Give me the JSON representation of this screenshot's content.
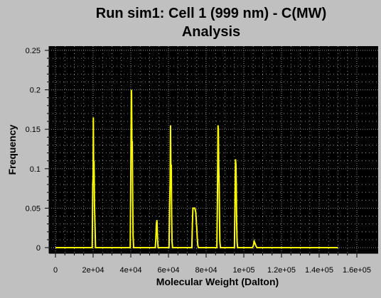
{
  "chart_data": {
    "type": "line",
    "title_line1": "Run sim1: Cell 1 (999 nm) - C(MW)",
    "title_line2": "Analysis",
    "xlabel": "Molecular Weight (Dalton)",
    "ylabel": "Frequency",
    "xlim": [
      0,
      160000
    ],
    "ylim": [
      0,
      0.25
    ],
    "x_ticks": [
      {
        "value": 0,
        "label": "0"
      },
      {
        "value": 20000,
        "label": "2e+04"
      },
      {
        "value": 40000,
        "label": "4e+04"
      },
      {
        "value": 60000,
        "label": "6e+04"
      },
      {
        "value": 80000,
        "label": "8e+04"
      },
      {
        "value": 100000,
        "label": "1e+05"
      },
      {
        "value": 120000,
        "label": "1.2e+05"
      },
      {
        "value": 140000,
        "label": "1.4e+05"
      },
      {
        "value": 160000,
        "label": "1.6e+05"
      }
    ],
    "y_ticks": [
      {
        "value": 0,
        "label": "0"
      },
      {
        "value": 0.05,
        "label": "0.05"
      },
      {
        "value": 0.1,
        "label": "0.1"
      },
      {
        "value": 0.15,
        "label": "0.15"
      },
      {
        "value": 0.2,
        "label": "0.2"
      },
      {
        "value": 0.25,
        "label": "0.25"
      }
    ],
    "grid": true,
    "colors": {
      "background": "#000000",
      "line": "#ffff00",
      "grid": "#8c8c8c",
      "frame": "#c0c0c0"
    },
    "series": [
      {
        "x": [
          0,
          19500,
          19800,
          20000,
          20100,
          20300,
          20500,
          20700,
          21000,
          21300,
          39700,
          40000,
          40300,
          40400,
          40600,
          40800,
          41000,
          41200,
          41500,
          53000,
          53300,
          53600,
          53900,
          54200,
          54500,
          60300,
          60600,
          60900,
          61100,
          61300,
          61500,
          61700,
          61900,
          62200,
          72400,
          72700,
          73000,
          73500,
          74000,
          74500,
          75000,
          75300,
          75600,
          75900,
          85700,
          86000,
          86300,
          86500,
          86700,
          86900,
          87100,
          87300,
          87600,
          95000,
          95300,
          95600,
          95800,
          96000,
          96200,
          96400,
          96700,
          104500,
          105000,
          105500,
          106000,
          106500,
          107000,
          150000
        ],
        "y": [
          0,
          0,
          0.08,
          0.09,
          0.165,
          0.09,
          0.11,
          0.055,
          0.025,
          0,
          0,
          0.09,
          0.2,
          0.195,
          0.13,
          0.135,
          0.06,
          0.015,
          0,
          0,
          0.01,
          0.03,
          0.035,
          0.012,
          0,
          0,
          0.05,
          0.085,
          0.155,
          0.1,
          0.105,
          0.04,
          0.008,
          0,
          0,
          0.03,
          0.05,
          0.05,
          0.05,
          0.045,
          0.025,
          0.012,
          0.003,
          0,
          0,
          0.06,
          0.155,
          0.15,
          0.1,
          0.08,
          0.04,
          0.008,
          0,
          0,
          0.05,
          0.112,
          0.105,
          0.08,
          0.035,
          0.008,
          0,
          0,
          0.002,
          0.008,
          0.005,
          0.002,
          0,
          0
        ]
      }
    ]
  }
}
